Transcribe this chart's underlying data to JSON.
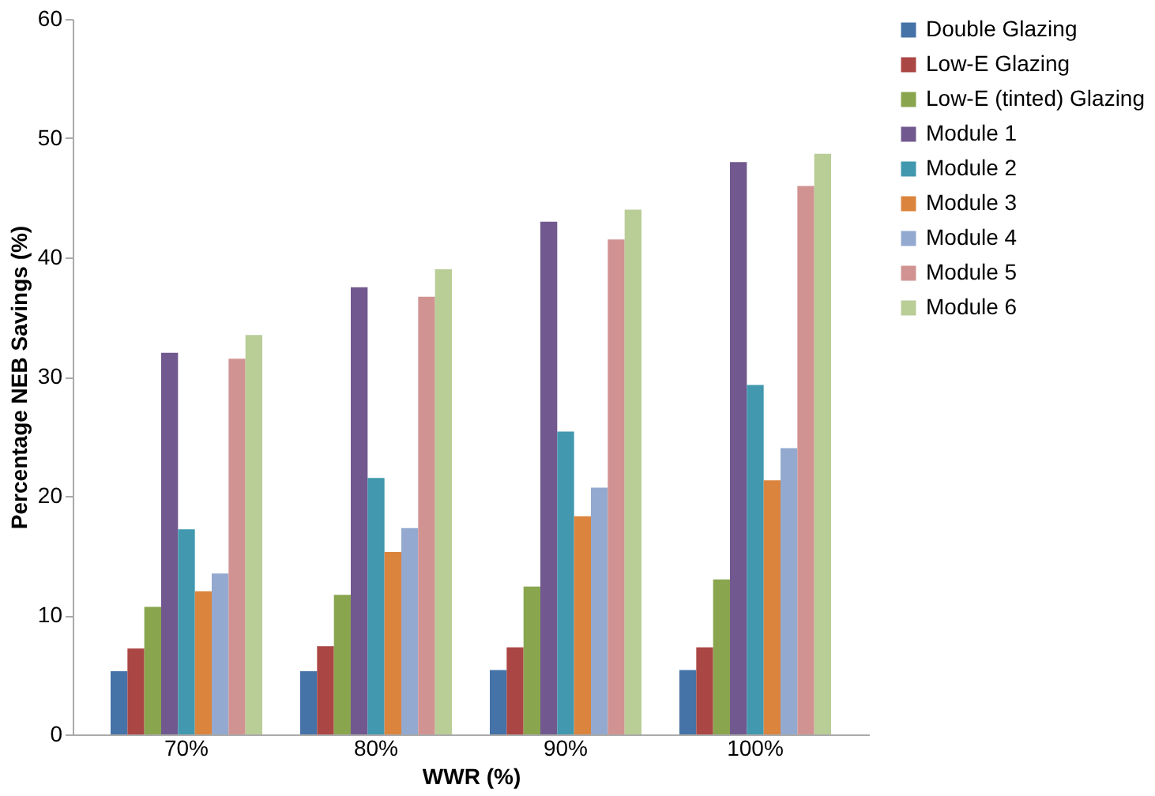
{
  "chart_data": {
    "type": "bar",
    "xlabel": "WWR (%)",
    "ylabel": "Percentage NEB Savings (%)",
    "categories": [
      "70%",
      "80%",
      "90%",
      "100%"
    ],
    "series": [
      {
        "name": "Double Glazing",
        "color": "#4572a7",
        "values": [
          5.3,
          5.3,
          5.4,
          5.4
        ]
      },
      {
        "name": "Low-E Glazing",
        "color": "#aa4643",
        "values": [
          7.2,
          7.4,
          7.3,
          7.3
        ]
      },
      {
        "name": "Low-E (tinted) Glazing",
        "color": "#89a54e",
        "values": [
          10.7,
          11.7,
          12.4,
          13
        ]
      },
      {
        "name": "Module 1",
        "color": "#71588f",
        "values": [
          32,
          37.5,
          43,
          48
        ]
      },
      {
        "name": "Module 2",
        "color": "#4198af",
        "values": [
          17.2,
          21.5,
          25.4,
          29.3
        ]
      },
      {
        "name": "Module 3",
        "color": "#db843d",
        "values": [
          12,
          15.3,
          18.3,
          21.3
        ]
      },
      {
        "name": "Module 4",
        "color": "#93a9cf",
        "values": [
          13.5,
          17.3,
          20.7,
          24
        ]
      },
      {
        "name": "Module 5",
        "color": "#d19392",
        "values": [
          31.5,
          36.7,
          41.5,
          46
        ]
      },
      {
        "name": "Module 6",
        "color": "#b9cd96",
        "values": [
          33.5,
          39,
          44,
          48.7
        ]
      }
    ],
    "ylim": [
      0,
      60
    ],
    "yticks": [
      0,
      10,
      20,
      30,
      40,
      50,
      60
    ],
    "grid": false,
    "legend": "right"
  }
}
